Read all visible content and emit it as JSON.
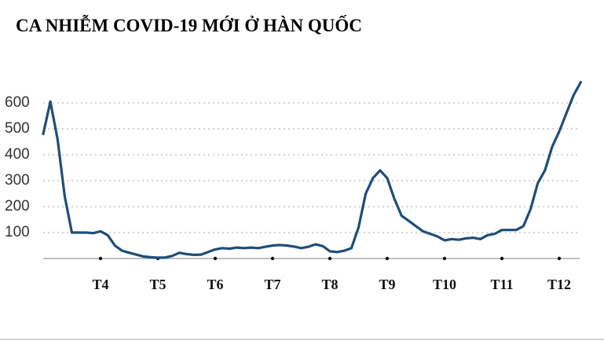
{
  "chart_data": {
    "type": "line",
    "title": "CA NHIỄM COVID-19 MỚI Ở HÀN QUỐC",
    "categories": [
      null,
      null,
      null,
      null,
      null,
      null,
      null,
      null,
      "T4",
      null,
      null,
      null,
      null,
      null,
      null,
      null,
      "T5",
      null,
      null,
      null,
      null,
      null,
      null,
      null,
      "T6",
      null,
      null,
      null,
      null,
      null,
      null,
      null,
      "T7",
      null,
      null,
      null,
      null,
      null,
      null,
      null,
      "T8",
      null,
      null,
      null,
      null,
      null,
      null,
      null,
      "T9",
      null,
      null,
      null,
      null,
      null,
      null,
      null,
      "T10",
      null,
      null,
      null,
      null,
      null,
      null,
      null,
      "T11",
      null,
      null,
      null,
      null,
      null,
      null,
      null,
      "T12",
      null,
      null,
      null
    ],
    "values": [
      480,
      605,
      460,
      240,
      100,
      100,
      100,
      98,
      105,
      90,
      50,
      30,
      22,
      15,
      8,
      5,
      3,
      4,
      10,
      22,
      17,
      14,
      15,
      25,
      35,
      40,
      38,
      42,
      40,
      42,
      40,
      45,
      50,
      52,
      50,
      46,
      40,
      45,
      55,
      48,
      28,
      25,
      30,
      40,
      120,
      250,
      310,
      340,
      310,
      230,
      165,
      145,
      125,
      105,
      95,
      85,
      70,
      75,
      72,
      78,
      80,
      75,
      90,
      95,
      110,
      110,
      110,
      125,
      190,
      290,
      340,
      430,
      490,
      560,
      630,
      680
    ],
    "color": "#1f4e79",
    "ylim": [
      0,
      700
    ],
    "yticks": [
      100,
      200,
      300,
      400,
      500,
      600
    ],
    "grid": true
  }
}
